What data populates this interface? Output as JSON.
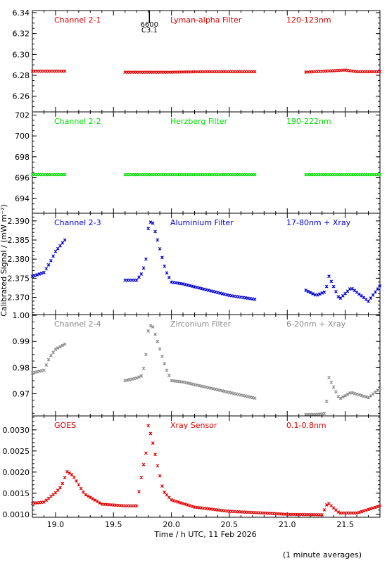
{
  "figure": {
    "ylabel": "Calibrated Signal / (mW m⁻²)",
    "xlabel": "Time / h UTC, 11 Feb 2026",
    "footnote": "(1 minute averages)",
    "marker_label_top": "6600",
    "marker_label_bottom": "C3.1",
    "marker_time": 19.81
  },
  "chart_data": [
    {
      "type": "scatter",
      "channel": "Channel 2-1",
      "filter": "Lyman-alpha Filter",
      "band": "120-123nm",
      "color": "#dd0000",
      "ylim": [
        6.245,
        6.342
      ],
      "xlim": [
        18.8,
        21.8
      ],
      "yticks": [
        6.26,
        6.28,
        6.3,
        6.32,
        6.34
      ],
      "x": [
        18.8,
        19.08,
        19.6,
        20.0,
        20.3,
        20.72,
        21.15,
        21.5,
        21.6,
        21.8
      ],
      "y": [
        6.284,
        6.284,
        6.283,
        6.283,
        6.2835,
        6.2835,
        6.283,
        6.285,
        6.2835,
        6.2835
      ],
      "gaps": [
        [
          19.09,
          19.59
        ],
        [
          20.73,
          21.14
        ]
      ]
    },
    {
      "type": "scatter",
      "channel": "Channel 2-2",
      "filter": "Herzberg Filter",
      "band": "190-222nm",
      "color": "#00dd00",
      "ylim": [
        692.6,
        702.3
      ],
      "xlim": [
        18.8,
        21.8
      ],
      "yticks": [
        694,
        696,
        698,
        700,
        702
      ],
      "x": [
        18.8,
        19.08,
        19.6,
        20.72,
        21.15,
        21.8
      ],
      "y": [
        696.3,
        696.3,
        696.3,
        696.3,
        696.3,
        696.3
      ],
      "gaps": [
        [
          19.09,
          19.59
        ],
        [
          20.73,
          21.14
        ]
      ]
    },
    {
      "type": "scatter",
      "channel": "Channel 2-3",
      "filter": "Aluminium Filter",
      "band": "17-80nm + Xray",
      "color": "#0000cc",
      "ylim": [
        2.3655,
        2.392
      ],
      "xlim": [
        18.8,
        21.8
      ],
      "yticks": [
        2.37,
        2.375,
        2.38,
        2.385,
        2.39
      ],
      "x": [
        18.8,
        18.9,
        18.95,
        19.0,
        19.08,
        19.6,
        19.7,
        19.75,
        19.78,
        19.8,
        19.83,
        19.88,
        19.95,
        20.0,
        20.1,
        20.3,
        20.5,
        20.72,
        21.15,
        21.25,
        21.33,
        21.36,
        21.45,
        21.55,
        21.7,
        21.8
      ],
      "y": [
        2.3755,
        2.3765,
        2.379,
        2.382,
        2.385,
        2.3745,
        2.3745,
        2.3765,
        2.38,
        2.388,
        2.3905,
        2.385,
        2.377,
        2.374,
        2.3735,
        2.372,
        2.3705,
        2.3695,
        2.372,
        2.3705,
        2.3715,
        2.3755,
        2.3695,
        2.3725,
        2.369,
        2.373
      ],
      "gaps": [
        [
          19.09,
          19.59
        ],
        [
          20.73,
          21.14
        ]
      ]
    },
    {
      "type": "scatter",
      "channel": "Channel 2-4",
      "filter": "Zirconium Filter",
      "band": "6-20nm + Xray",
      "color": "#888888",
      "ylim": [
        0.9615,
        1.0003
      ],
      "xlim": [
        18.8,
        21.8
      ],
      "yticks": [
        0.97,
        0.98,
        0.99,
        1.0
      ],
      "x": [
        18.8,
        18.9,
        18.95,
        19.0,
        19.08,
        19.6,
        19.7,
        19.75,
        19.78,
        19.8,
        19.83,
        19.88,
        19.95,
        20.0,
        20.1,
        20.3,
        20.5,
        20.72,
        21.15,
        21.25,
        21.33,
        21.36,
        21.45,
        21.55,
        21.7,
        21.8
      ],
      "y": [
        0.978,
        0.979,
        0.984,
        0.987,
        0.989,
        0.975,
        0.976,
        0.977,
        0.985,
        0.994,
        0.997,
        0.99,
        0.98,
        0.975,
        0.9745,
        0.9725,
        0.9705,
        0.9683,
        0.962,
        0.962,
        0.9625,
        0.9762,
        0.968,
        0.9705,
        0.9685,
        0.972
      ],
      "gaps": [
        [
          19.09,
          19.59
        ],
        [
          20.73,
          21.14
        ]
      ]
    },
    {
      "type": "scatter",
      "channel": "GOES",
      "filter": "Xray Sensor",
      "band": "0.1-0.8nm",
      "color": "#dd0000",
      "ylim": [
        0.00093,
        0.00333
      ],
      "xlim": [
        18.8,
        21.8
      ],
      "yticks": [
        0.001,
        0.0015,
        0.002,
        0.0025,
        0.003
      ],
      "x": [
        18.8,
        18.9,
        19.0,
        19.05,
        19.1,
        19.15,
        19.25,
        19.4,
        19.6,
        19.7,
        19.75,
        19.78,
        19.8,
        19.83,
        19.88,
        19.93,
        20.0,
        20.2,
        20.5,
        20.8,
        21.0,
        21.3,
        21.35,
        21.38,
        21.45,
        21.6,
        21.8
      ],
      "y": [
        0.00126,
        0.00129,
        0.00151,
        0.00166,
        0.00201,
        0.00192,
        0.00148,
        0.00124,
        0.0012,
        0.0012,
        0.00204,
        0.00245,
        0.0031,
        0.00282,
        0.00215,
        0.00155,
        0.00134,
        0.00117,
        0.00107,
        0.00103,
        0.001,
        0.00099,
        0.00128,
        0.0012,
        0.00103,
        0.00103,
        0.0012
      ],
      "gaps": []
    }
  ]
}
